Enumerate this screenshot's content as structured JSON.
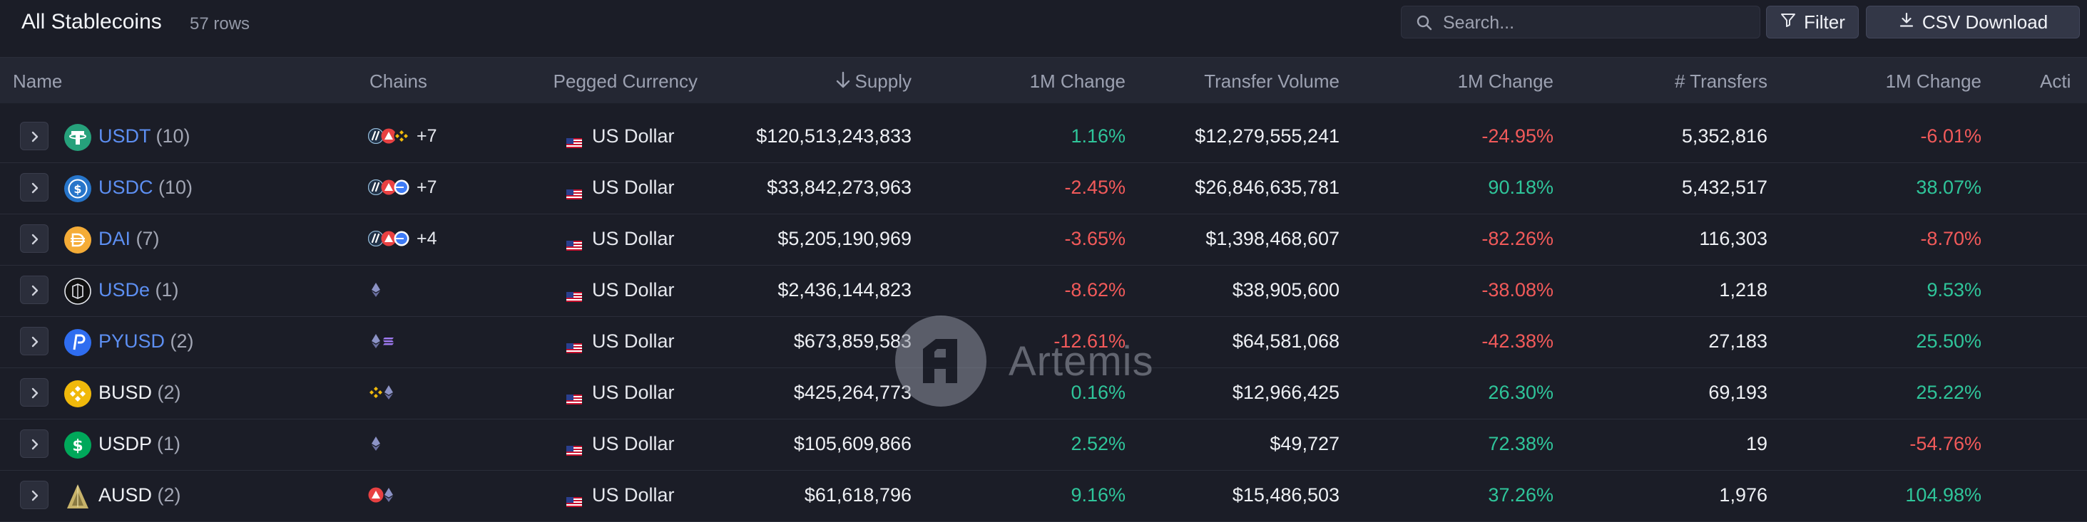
{
  "header": {
    "title": "All Stablecoins",
    "row_count": "57 rows",
    "search_placeholder": "Search...",
    "filter_label": "Filter",
    "csv_label": "CSV Download"
  },
  "columns": {
    "name": "Name",
    "chains": "Chains",
    "pegged": "Pegged Currency",
    "supply": "Supply",
    "supply_change": "1M Change",
    "transfer_volume": "Transfer Volume",
    "volume_change": "1M Change",
    "transfers": "# Transfers",
    "transfers_change": "1M Change",
    "active": "Acti"
  },
  "colors": {
    "positive": "#2fc59a",
    "negative": "#f25a5a",
    "link": "#5d8ff2"
  },
  "rows": [
    {
      "symbol": "USDT",
      "count": "(10)",
      "linked": true,
      "coin_icon": "tether-icon",
      "chain_icons": [
        "arbitrum-icon",
        "avalanche-icon",
        "bnb-icon"
      ],
      "chains_more": "+7",
      "currency": "US Dollar",
      "supply": "$120,513,243,833",
      "supply_change": "1.16%",
      "supply_change_dir": "pos",
      "transfer_volume": "$12,279,555,241",
      "volume_change": "-24.95%",
      "volume_change_dir": "neg",
      "transfers": "5,352,816",
      "transfers_change": "-6.01%",
      "transfers_change_dir": "neg"
    },
    {
      "symbol": "USDC",
      "count": "(10)",
      "linked": true,
      "coin_icon": "usdc-icon",
      "chain_icons": [
        "arbitrum-icon",
        "avalanche-icon",
        "base-icon"
      ],
      "chains_more": "+7",
      "currency": "US Dollar",
      "supply": "$33,842,273,963",
      "supply_change": "-2.45%",
      "supply_change_dir": "neg",
      "transfer_volume": "$26,846,635,781",
      "volume_change": "90.18%",
      "volume_change_dir": "pos",
      "transfers": "5,432,517",
      "transfers_change": "38.07%",
      "transfers_change_dir": "pos"
    },
    {
      "symbol": "DAI",
      "count": "(7)",
      "linked": true,
      "coin_icon": "dai-icon",
      "chain_icons": [
        "arbitrum-icon",
        "avalanche-icon",
        "base-icon"
      ],
      "chains_more": "+4",
      "currency": "US Dollar",
      "supply": "$5,205,190,969",
      "supply_change": "-3.65%",
      "supply_change_dir": "neg",
      "transfer_volume": "$1,398,468,607",
      "volume_change": "-82.26%",
      "volume_change_dir": "neg",
      "transfers": "116,303",
      "transfers_change": "-8.70%",
      "transfers_change_dir": "neg"
    },
    {
      "symbol": "USDe",
      "count": "(1)",
      "linked": true,
      "coin_icon": "usde-icon",
      "chain_icons": [
        "ethereum-icon"
      ],
      "chains_more": "",
      "currency": "US Dollar",
      "supply": "$2,436,144,823",
      "supply_change": "-8.62%",
      "supply_change_dir": "neg",
      "transfer_volume": "$38,905,600",
      "volume_change": "-38.08%",
      "volume_change_dir": "neg",
      "transfers": "1,218",
      "transfers_change": "9.53%",
      "transfers_change_dir": "pos"
    },
    {
      "symbol": "PYUSD",
      "count": "(2)",
      "linked": true,
      "coin_icon": "pyusd-icon",
      "chain_icons": [
        "ethereum-icon",
        "solana-icon"
      ],
      "chains_more": "",
      "currency": "US Dollar",
      "supply": "$673,859,583",
      "supply_change": "-12.61%",
      "supply_change_dir": "neg",
      "transfer_volume": "$64,581,068",
      "volume_change": "-42.38%",
      "volume_change_dir": "neg",
      "transfers": "27,183",
      "transfers_change": "25.50%",
      "transfers_change_dir": "pos"
    },
    {
      "symbol": "BUSD",
      "count": "(2)",
      "linked": false,
      "coin_icon": "busd-icon",
      "chain_icons": [
        "bnb-icon",
        "ethereum-icon"
      ],
      "chains_more": "",
      "currency": "US Dollar",
      "supply": "$425,264,773",
      "supply_change": "0.16%",
      "supply_change_dir": "pos",
      "transfer_volume": "$12,966,425",
      "volume_change": "26.30%",
      "volume_change_dir": "pos",
      "transfers": "69,193",
      "transfers_change": "25.22%",
      "transfers_change_dir": "pos"
    },
    {
      "symbol": "USDP",
      "count": "(1)",
      "linked": false,
      "coin_icon": "usdp-icon",
      "chain_icons": [
        "ethereum-icon"
      ],
      "chains_more": "",
      "currency": "US Dollar",
      "supply": "$105,609,866",
      "supply_change": "2.52%",
      "supply_change_dir": "pos",
      "transfer_volume": "$49,727",
      "volume_change": "72.38%",
      "volume_change_dir": "pos",
      "transfers": "19",
      "transfers_change": "-54.76%",
      "transfers_change_dir": "neg"
    },
    {
      "symbol": "AUSD",
      "count": "(2)",
      "linked": false,
      "coin_icon": "ausd-icon",
      "chain_icons": [
        "avalanche-icon",
        "ethereum-icon"
      ],
      "chains_more": "",
      "currency": "US Dollar",
      "supply": "$61,618,796",
      "supply_change": "9.16%",
      "supply_change_dir": "pos",
      "transfer_volume": "$15,486,503",
      "volume_change": "37.26%",
      "volume_change_dir": "pos",
      "transfers": "1,976",
      "transfers_change": "104.98%",
      "transfers_change_dir": "pos"
    }
  ],
  "watermark": "Artemis"
}
